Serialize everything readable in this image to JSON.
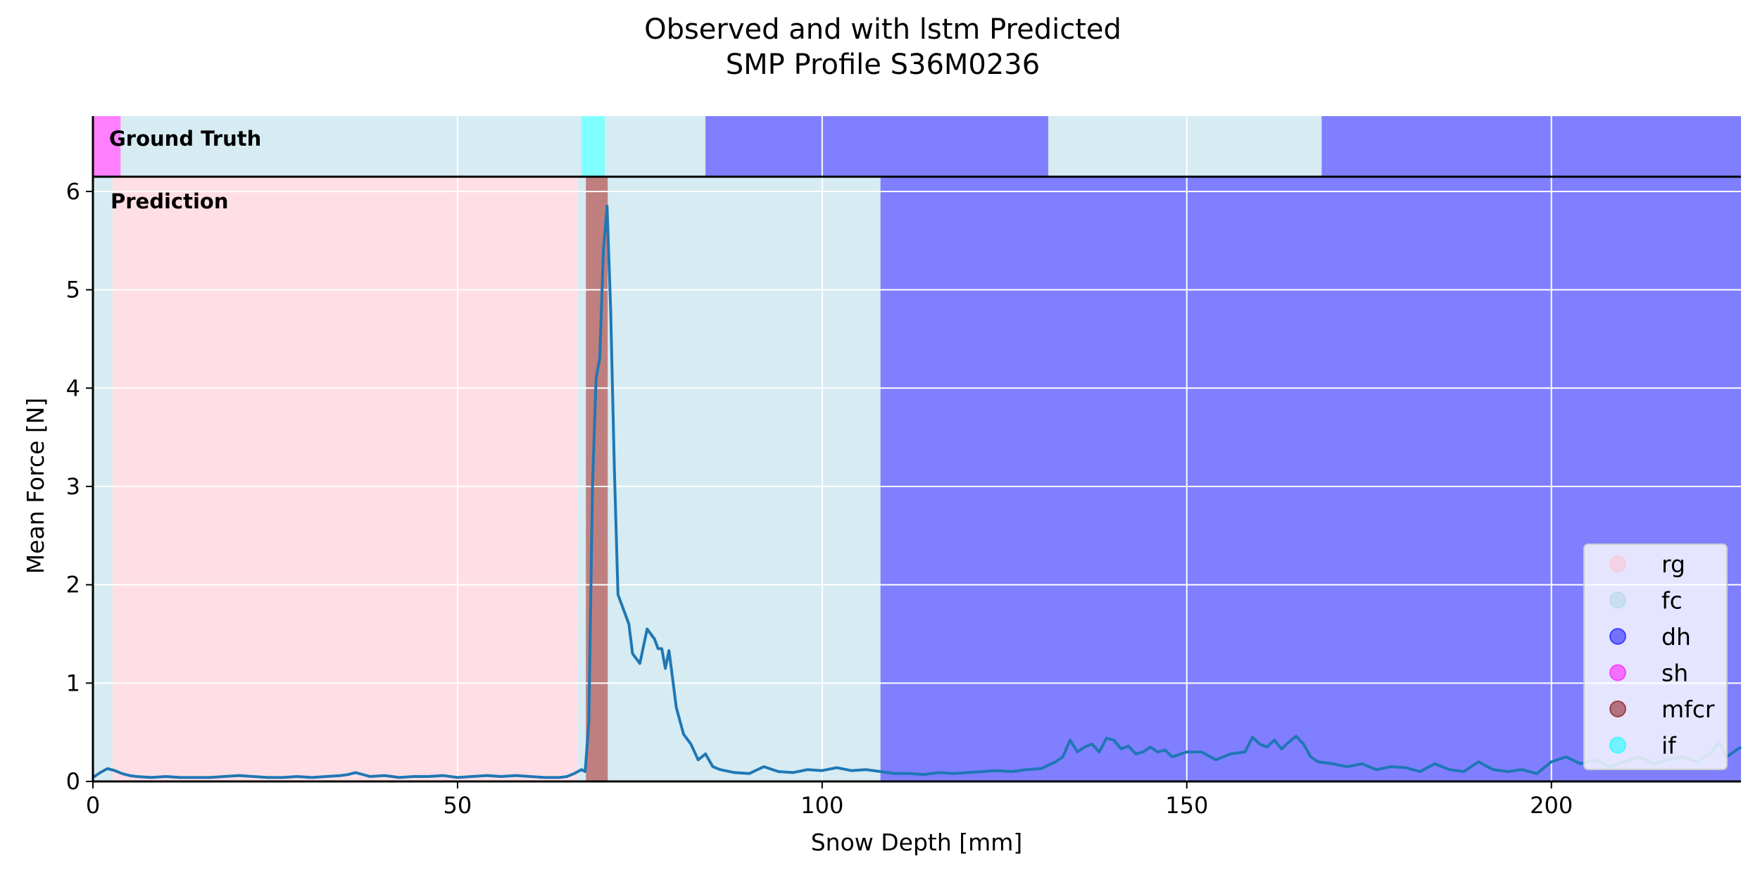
{
  "chart_data": {
    "type": "line",
    "title_lines": [
      "Observed and with lstm Predicted",
      "SMP Profile S36M0236"
    ],
    "xlabel": "Snow Depth [mm]",
    "ylabel": "Mean Force [N]",
    "xlim": [
      0,
      226
    ],
    "ylim": [
      0,
      6.15
    ],
    "xticks": [
      0,
      50,
      100,
      150,
      200
    ],
    "yticks": [
      0,
      1,
      2,
      3,
      4,
      5,
      6
    ],
    "grid": true,
    "legend_position": "lower-right",
    "panel_labels": {
      "ground_truth": "Ground Truth",
      "prediction": "Prediction"
    },
    "colors": {
      "rg": "#ffc0cb",
      "fc": "#add8e6",
      "dh": "#0000ff",
      "sh": "#ff00ff",
      "mfcr": "#800000",
      "if": "#00ffff",
      "line": "#1f77b4"
    },
    "legend": [
      "rg",
      "fc",
      "dh",
      "sh",
      "mfcr",
      "if"
    ],
    "ground_truth_segments": [
      {
        "start": 0,
        "end": 3.8,
        "label": "sh"
      },
      {
        "start": 3.8,
        "end": 67.0,
        "label": "fc"
      },
      {
        "start": 67.0,
        "end": 70.2,
        "label": "if"
      },
      {
        "start": 70.2,
        "end": 84.0,
        "label": "fc"
      },
      {
        "start": 84.0,
        "end": 131.0,
        "label": "dh"
      },
      {
        "start": 131.0,
        "end": 168.5,
        "label": "fc"
      },
      {
        "start": 168.5,
        "end": 226,
        "label": "dh"
      }
    ],
    "prediction_segments": [
      {
        "start": 0,
        "end": 2.7,
        "label": "fc"
      },
      {
        "start": 2.7,
        "end": 66.5,
        "label": "rg"
      },
      {
        "start": 66.5,
        "end": 67.6,
        "label": "fc"
      },
      {
        "start": 67.6,
        "end": 70.6,
        "label": "mfcr"
      },
      {
        "start": 70.6,
        "end": 108.0,
        "label": "fc"
      },
      {
        "start": 108.0,
        "end": 226,
        "label": "dh"
      }
    ],
    "series": [
      {
        "x": [
          0,
          1,
          2,
          3,
          4,
          5,
          6,
          8,
          10,
          12,
          14,
          16,
          18,
          20,
          22,
          24,
          26,
          28,
          30,
          32,
          34,
          35,
          36,
          38,
          40,
          42,
          44,
          46,
          48,
          50,
          52,
          54,
          56,
          58,
          60,
          62,
          64,
          65,
          66,
          67,
          67.5,
          68,
          68.5,
          69,
          69.5,
          70,
          70.5,
          71,
          71.5,
          72,
          73,
          73.5,
          74,
          75,
          76,
          77,
          77.5,
          78,
          78.5,
          79,
          80,
          81,
          82,
          83,
          84,
          85,
          86,
          88,
          90,
          92,
          94,
          96,
          98,
          100,
          102,
          104,
          106,
          108,
          110,
          112,
          114,
          116,
          118,
          120,
          122,
          124,
          126,
          128,
          130,
          132,
          133,
          134,
          135,
          136,
          137,
          138,
          139,
          140,
          141,
          142,
          143,
          144,
          145,
          146,
          147,
          148,
          150,
          152,
          154,
          156,
          158,
          159,
          160,
          161,
          162,
          163,
          164,
          165,
          166,
          167,
          168,
          170,
          172,
          174,
          176,
          178,
          180,
          182,
          184,
          186,
          188,
          190,
          192,
          194,
          196,
          198,
          200,
          202,
          204,
          206,
          208,
          210,
          212,
          214,
          216,
          218,
          220,
          222,
          223,
          224,
          226
        ],
        "y": [
          0.04,
          0.09,
          0.13,
          0.11,
          0.08,
          0.06,
          0.05,
          0.04,
          0.05,
          0.04,
          0.04,
          0.04,
          0.05,
          0.06,
          0.05,
          0.04,
          0.04,
          0.05,
          0.04,
          0.05,
          0.06,
          0.07,
          0.09,
          0.05,
          0.06,
          0.04,
          0.05,
          0.05,
          0.06,
          0.04,
          0.05,
          0.06,
          0.05,
          0.06,
          0.05,
          0.04,
          0.04,
          0.05,
          0.08,
          0.12,
          0.1,
          0.6,
          3.0,
          4.1,
          4.3,
          5.4,
          5.85,
          4.8,
          3.2,
          1.9,
          1.7,
          1.6,
          1.3,
          1.2,
          1.55,
          1.45,
          1.35,
          1.35,
          1.15,
          1.33,
          0.75,
          0.48,
          0.38,
          0.22,
          0.28,
          0.15,
          0.12,
          0.09,
          0.08,
          0.15,
          0.1,
          0.09,
          0.12,
          0.11,
          0.14,
          0.11,
          0.12,
          0.1,
          0.08,
          0.08,
          0.07,
          0.09,
          0.08,
          0.09,
          0.1,
          0.11,
          0.1,
          0.12,
          0.13,
          0.2,
          0.25,
          0.42,
          0.3,
          0.35,
          0.38,
          0.3,
          0.44,
          0.42,
          0.33,
          0.36,
          0.28,
          0.3,
          0.35,
          0.3,
          0.32,
          0.25,
          0.3,
          0.3,
          0.22,
          0.28,
          0.3,
          0.45,
          0.38,
          0.35,
          0.42,
          0.33,
          0.4,
          0.46,
          0.38,
          0.25,
          0.2,
          0.18,
          0.15,
          0.18,
          0.12,
          0.15,
          0.14,
          0.1,
          0.18,
          0.12,
          0.1,
          0.2,
          0.12,
          0.1,
          0.12,
          0.08,
          0.2,
          0.25,
          0.18,
          0.22,
          0.15,
          0.2,
          0.25,
          0.18,
          0.22,
          0.25,
          0.2,
          0.3,
          0.4,
          0.25,
          0.35
        ]
      }
    ]
  }
}
